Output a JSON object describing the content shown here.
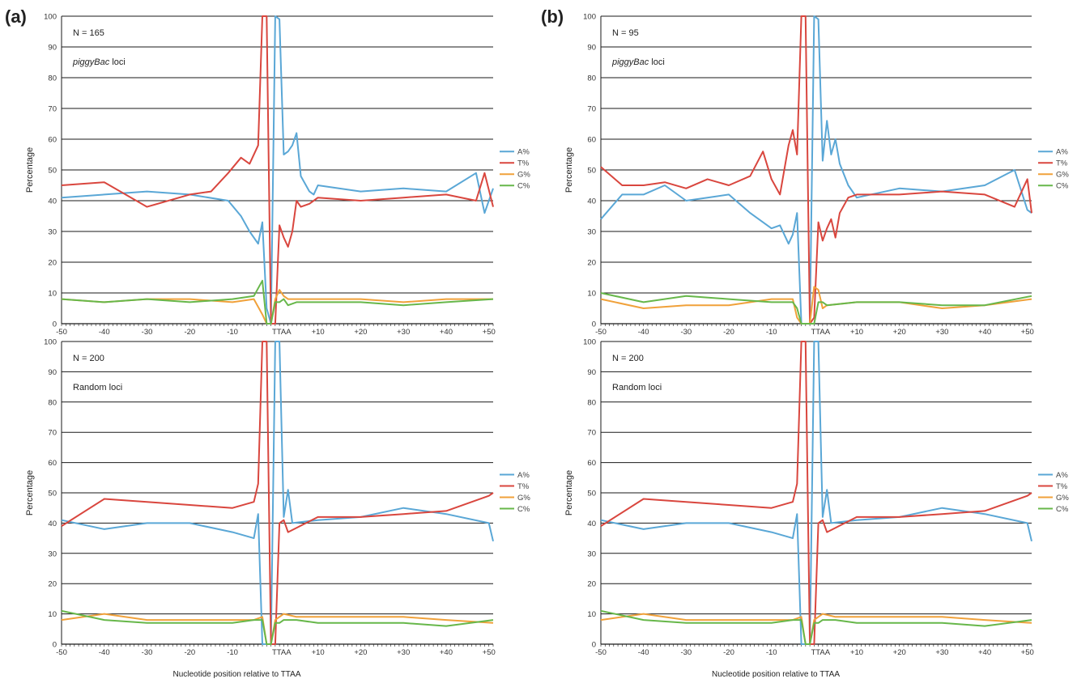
{
  "chart_data": [
    {
      "panel": "(a)",
      "type": "line",
      "annotation_n": "N = 165",
      "annotation_loci_italic": "piggyBac",
      "annotation_loci_rest": " loci",
      "ylabel": "Percentage",
      "xlabel": "",
      "ylim": [
        0,
        100
      ],
      "yticks": [
        0,
        10,
        20,
        30,
        40,
        50,
        60,
        70,
        80,
        90,
        100
      ],
      "xlim": [
        -50,
        51
      ],
      "xtick_labels": [
        "-50",
        "-40",
        "-30",
        "-20",
        "-10",
        "TTAA",
        "+10",
        "+20",
        "+30",
        "+40",
        "+50"
      ],
      "grid": "horizontal",
      "legend_position": "right",
      "series": [
        {
          "name": "A%",
          "color": "#5aa7d6",
          "x": [
            -50,
            -40,
            -30,
            -20,
            -11,
            -8,
            -6,
            -4,
            -3,
            -2,
            -1,
            0,
            1,
            2,
            3,
            4,
            5,
            6,
            8,
            9,
            10,
            20,
            30,
            40,
            47,
            49,
            51
          ],
          "y": [
            41,
            42,
            43,
            42,
            40,
            35,
            30,
            26,
            33,
            5,
            0,
            100,
            99,
            55,
            56,
            58,
            62,
            48,
            43,
            42,
            45,
            43,
            44,
            43,
            49,
            36,
            44
          ]
        },
        {
          "name": "T%",
          "color": "#d9463e",
          "x": [
            -50,
            -40,
            -30,
            -20,
            -15,
            -11,
            -8,
            -6,
            -4,
            -3,
            -2,
            -1,
            0,
            1,
            2,
            3,
            4,
            5,
            6,
            8,
            9,
            10,
            20,
            30,
            40,
            47,
            49,
            51
          ],
          "y": [
            45,
            46,
            38,
            42,
            43,
            49,
            54,
            52,
            58,
            100,
            100,
            0,
            0,
            32,
            28,
            25,
            30,
            40,
            38,
            39,
            40,
            41,
            40,
            41,
            42,
            40,
            49,
            38
          ]
        },
        {
          "name": "G%",
          "color": "#f0a13a",
          "x": [
            -50,
            -40,
            -30,
            -20,
            -10,
            -5,
            -3,
            -2,
            -1,
            0,
            1,
            2,
            3,
            5,
            10,
            20,
            30,
            40,
            51
          ],
          "y": [
            8,
            7,
            8,
            8,
            7,
            8,
            3,
            0,
            0,
            8,
            11,
            9,
            8,
            8,
            8,
            8,
            7,
            8,
            8
          ]
        },
        {
          "name": "C%",
          "color": "#67b74a",
          "x": [
            -50,
            -40,
            -30,
            -20,
            -10,
            -5,
            -3,
            -2,
            -1,
            0,
            1,
            2,
            3,
            5,
            10,
            20,
            30,
            40,
            51
          ],
          "y": [
            8,
            7,
            8,
            7,
            8,
            9,
            14,
            0,
            0,
            7,
            7,
            8,
            6,
            7,
            7,
            7,
            6,
            7,
            8
          ]
        }
      ]
    },
    {
      "panel": "(a)",
      "type": "line",
      "annotation_n": "N = 200",
      "annotation_loci": "Random loci",
      "ylabel": "Percentage",
      "xlabel": "Nucleotide position relative to TTAA",
      "ylim": [
        0,
        100
      ],
      "yticks": [
        0,
        10,
        20,
        30,
        40,
        50,
        60,
        70,
        80,
        90,
        100
      ],
      "xlim": [
        -50,
        51
      ],
      "xtick_labels": [
        "-50",
        "-40",
        "-30",
        "-20",
        "-10",
        "TTAA",
        "+10",
        "+20",
        "+30",
        "+40",
        "+50"
      ],
      "grid": "horizontal",
      "legend_position": "right",
      "series": [
        {
          "name": "A%",
          "color": "#5aa7d6",
          "x": [
            -50,
            -40,
            -30,
            -20,
            -10,
            -5,
            -4,
            -3,
            -2,
            -1,
            0,
            1,
            2,
            3,
            4,
            10,
            20,
            30,
            40,
            50,
            51
          ],
          "y": [
            41,
            38,
            40,
            40,
            37,
            35,
            43,
            0,
            0,
            0,
            100,
            100,
            42,
            51,
            40,
            41,
            42,
            45,
            43,
            40,
            34
          ]
        },
        {
          "name": "T%",
          "color": "#d9463e",
          "x": [
            -50,
            -40,
            -30,
            -20,
            -10,
            -5,
            -4,
            -3,
            -2,
            -1,
            0,
            1,
            2,
            3,
            10,
            20,
            30,
            40,
            50,
            51
          ],
          "y": [
            39,
            48,
            47,
            46,
            45,
            47,
            53,
            100,
            100,
            0,
            0,
            40,
            41,
            37,
            42,
            42,
            43,
            44,
            49,
            50
          ]
        },
        {
          "name": "G%",
          "color": "#f0a13a",
          "x": [
            -50,
            -40,
            -30,
            -20,
            -10,
            -5,
            -3,
            -2,
            -1,
            0,
            1,
            2,
            5,
            10,
            20,
            30,
            40,
            51
          ],
          "y": [
            8,
            10,
            8,
            8,
            8,
            8,
            9,
            0,
            0,
            8,
            9,
            10,
            9,
            9,
            9,
            9,
            8,
            7
          ]
        },
        {
          "name": "C%",
          "color": "#67b74a",
          "x": [
            -50,
            -40,
            -30,
            -20,
            -10,
            -5,
            -3,
            -2,
            -1,
            0,
            1,
            2,
            5,
            10,
            20,
            30,
            40,
            51
          ],
          "y": [
            11,
            8,
            7,
            7,
            7,
            8,
            8,
            0,
            0,
            7,
            7,
            8,
            8,
            7,
            7,
            7,
            6,
            8
          ]
        }
      ]
    },
    {
      "panel": "(b)",
      "type": "line",
      "annotation_n": "N = 95",
      "annotation_loci_italic": "piggyBac",
      "annotation_loci_rest": " loci",
      "ylabel": "Percentage",
      "xlabel": "",
      "ylim": [
        0,
        100
      ],
      "yticks": [
        0,
        10,
        20,
        30,
        40,
        50,
        60,
        70,
        80,
        90,
        100
      ],
      "xlim": [
        -50,
        51
      ],
      "xtick_labels": [
        "-50",
        "-40",
        "-30",
        "-20",
        "-10",
        "TTAA",
        "+10",
        "+20",
        "+30",
        "+40",
        "+50"
      ],
      "grid": "horizontal",
      "legend_position": "right",
      "series": [
        {
          "name": "A%",
          "color": "#5aa7d6",
          "x": [
            -50,
            -45,
            -40,
            -35,
            -30,
            -25,
            -20,
            -15,
            -10,
            -8,
            -6,
            -5,
            -4,
            -3,
            -2,
            -1,
            0,
            1,
            2,
            3,
            4,
            5,
            6,
            8,
            10,
            20,
            30,
            40,
            47,
            50,
            51
          ],
          "y": [
            34,
            42,
            42,
            45,
            40,
            41,
            42,
            36,
            31,
            32,
            26,
            29,
            36,
            0,
            0,
            0,
            100,
            99,
            53,
            66,
            55,
            60,
            52,
            45,
            41,
            44,
            43,
            45,
            50,
            37,
            36
          ]
        },
        {
          "name": "T%",
          "color": "#d9463e",
          "x": [
            -50,
            -45,
            -40,
            -35,
            -30,
            -25,
            -20,
            -15,
            -12,
            -10,
            -8,
            -6,
            -5,
            -4,
            -3,
            -2,
            -1,
            0,
            1,
            2,
            3,
            4,
            5,
            6,
            8,
            10,
            20,
            30,
            40,
            47,
            50,
            51
          ],
          "y": [
            51,
            45,
            45,
            46,
            44,
            47,
            45,
            48,
            56,
            47,
            42,
            58,
            63,
            55,
            100,
            100,
            0,
            2,
            33,
            27,
            31,
            34,
            28,
            36,
            41,
            42,
            42,
            43,
            42,
            38,
            47,
            36
          ]
        },
        {
          "name": "G%",
          "color": "#f0a13a",
          "x": [
            -50,
            -40,
            -30,
            -20,
            -10,
            -5,
            -4,
            -3,
            -2,
            -1,
            0,
            1,
            2,
            3,
            10,
            20,
            30,
            40,
            51
          ],
          "y": [
            8,
            5,
            6,
            6,
            8,
            8,
            2,
            0,
            0,
            0,
            12,
            11,
            5,
            6,
            7,
            7,
            5,
            6,
            8
          ]
        },
        {
          "name": "C%",
          "color": "#67b74a",
          "x": [
            -50,
            -40,
            -30,
            -20,
            -10,
            -5,
            -4,
            -3,
            -2,
            -1,
            0,
            1,
            2,
            3,
            10,
            20,
            30,
            40,
            51
          ],
          "y": [
            10,
            7,
            9,
            8,
            7,
            7,
            5,
            0,
            0,
            0,
            0,
            7,
            7,
            6,
            7,
            7,
            6,
            6,
            9
          ]
        }
      ]
    },
    {
      "panel": "(b)",
      "type": "line",
      "annotation_n": "N = 200",
      "annotation_loci": "Random loci",
      "ylabel": "Percentage",
      "xlabel": "Nucleotide position relative to TTAA",
      "ylim": [
        0,
        100
      ],
      "yticks": [
        0,
        10,
        20,
        30,
        40,
        50,
        60,
        70,
        80,
        90,
        100
      ],
      "xlim": [
        -50,
        51
      ],
      "xtick_labels": [
        "-50",
        "-40",
        "-30",
        "-20",
        "-10",
        "TTAA",
        "+10",
        "+20",
        "+30",
        "+40",
        "+50"
      ],
      "grid": "horizontal",
      "legend_position": "right",
      "series": [
        {
          "name": "A%",
          "color": "#5aa7d6",
          "x": [
            -50,
            -40,
            -30,
            -20,
            -10,
            -5,
            -4,
            -3,
            -2,
            -1,
            0,
            1,
            2,
            3,
            4,
            10,
            20,
            30,
            40,
            50,
            51
          ],
          "y": [
            41,
            38,
            40,
            40,
            37,
            35,
            43,
            0,
            0,
            0,
            100,
            100,
            42,
            51,
            40,
            41,
            42,
            45,
            43,
            40,
            34
          ]
        },
        {
          "name": "T%",
          "color": "#d9463e",
          "x": [
            -50,
            -40,
            -30,
            -20,
            -10,
            -5,
            -4,
            -3,
            -2,
            -1,
            0,
            1,
            2,
            3,
            10,
            20,
            30,
            40,
            50,
            51
          ],
          "y": [
            39,
            48,
            47,
            46,
            45,
            47,
            53,
            100,
            100,
            0,
            0,
            40,
            41,
            37,
            42,
            42,
            43,
            44,
            49,
            50
          ]
        },
        {
          "name": "G%",
          "color": "#f0a13a",
          "x": [
            -50,
            -40,
            -30,
            -20,
            -10,
            -5,
            -3,
            -2,
            -1,
            0,
            1,
            2,
            5,
            10,
            20,
            30,
            40,
            51
          ],
          "y": [
            8,
            10,
            8,
            8,
            8,
            8,
            9,
            0,
            0,
            8,
            9,
            10,
            9,
            9,
            9,
            9,
            8,
            7
          ]
        },
        {
          "name": "C%",
          "color": "#67b74a",
          "x": [
            -50,
            -40,
            -30,
            -20,
            -10,
            -5,
            -3,
            -2,
            -1,
            0,
            1,
            2,
            5,
            10,
            20,
            30,
            40,
            51
          ],
          "y": [
            11,
            8,
            7,
            7,
            7,
            8,
            8,
            0,
            0,
            7,
            7,
            8,
            8,
            7,
            7,
            7,
            6,
            8
          ]
        }
      ]
    }
  ],
  "panel_labels": [
    "(a)",
    "(b)"
  ]
}
